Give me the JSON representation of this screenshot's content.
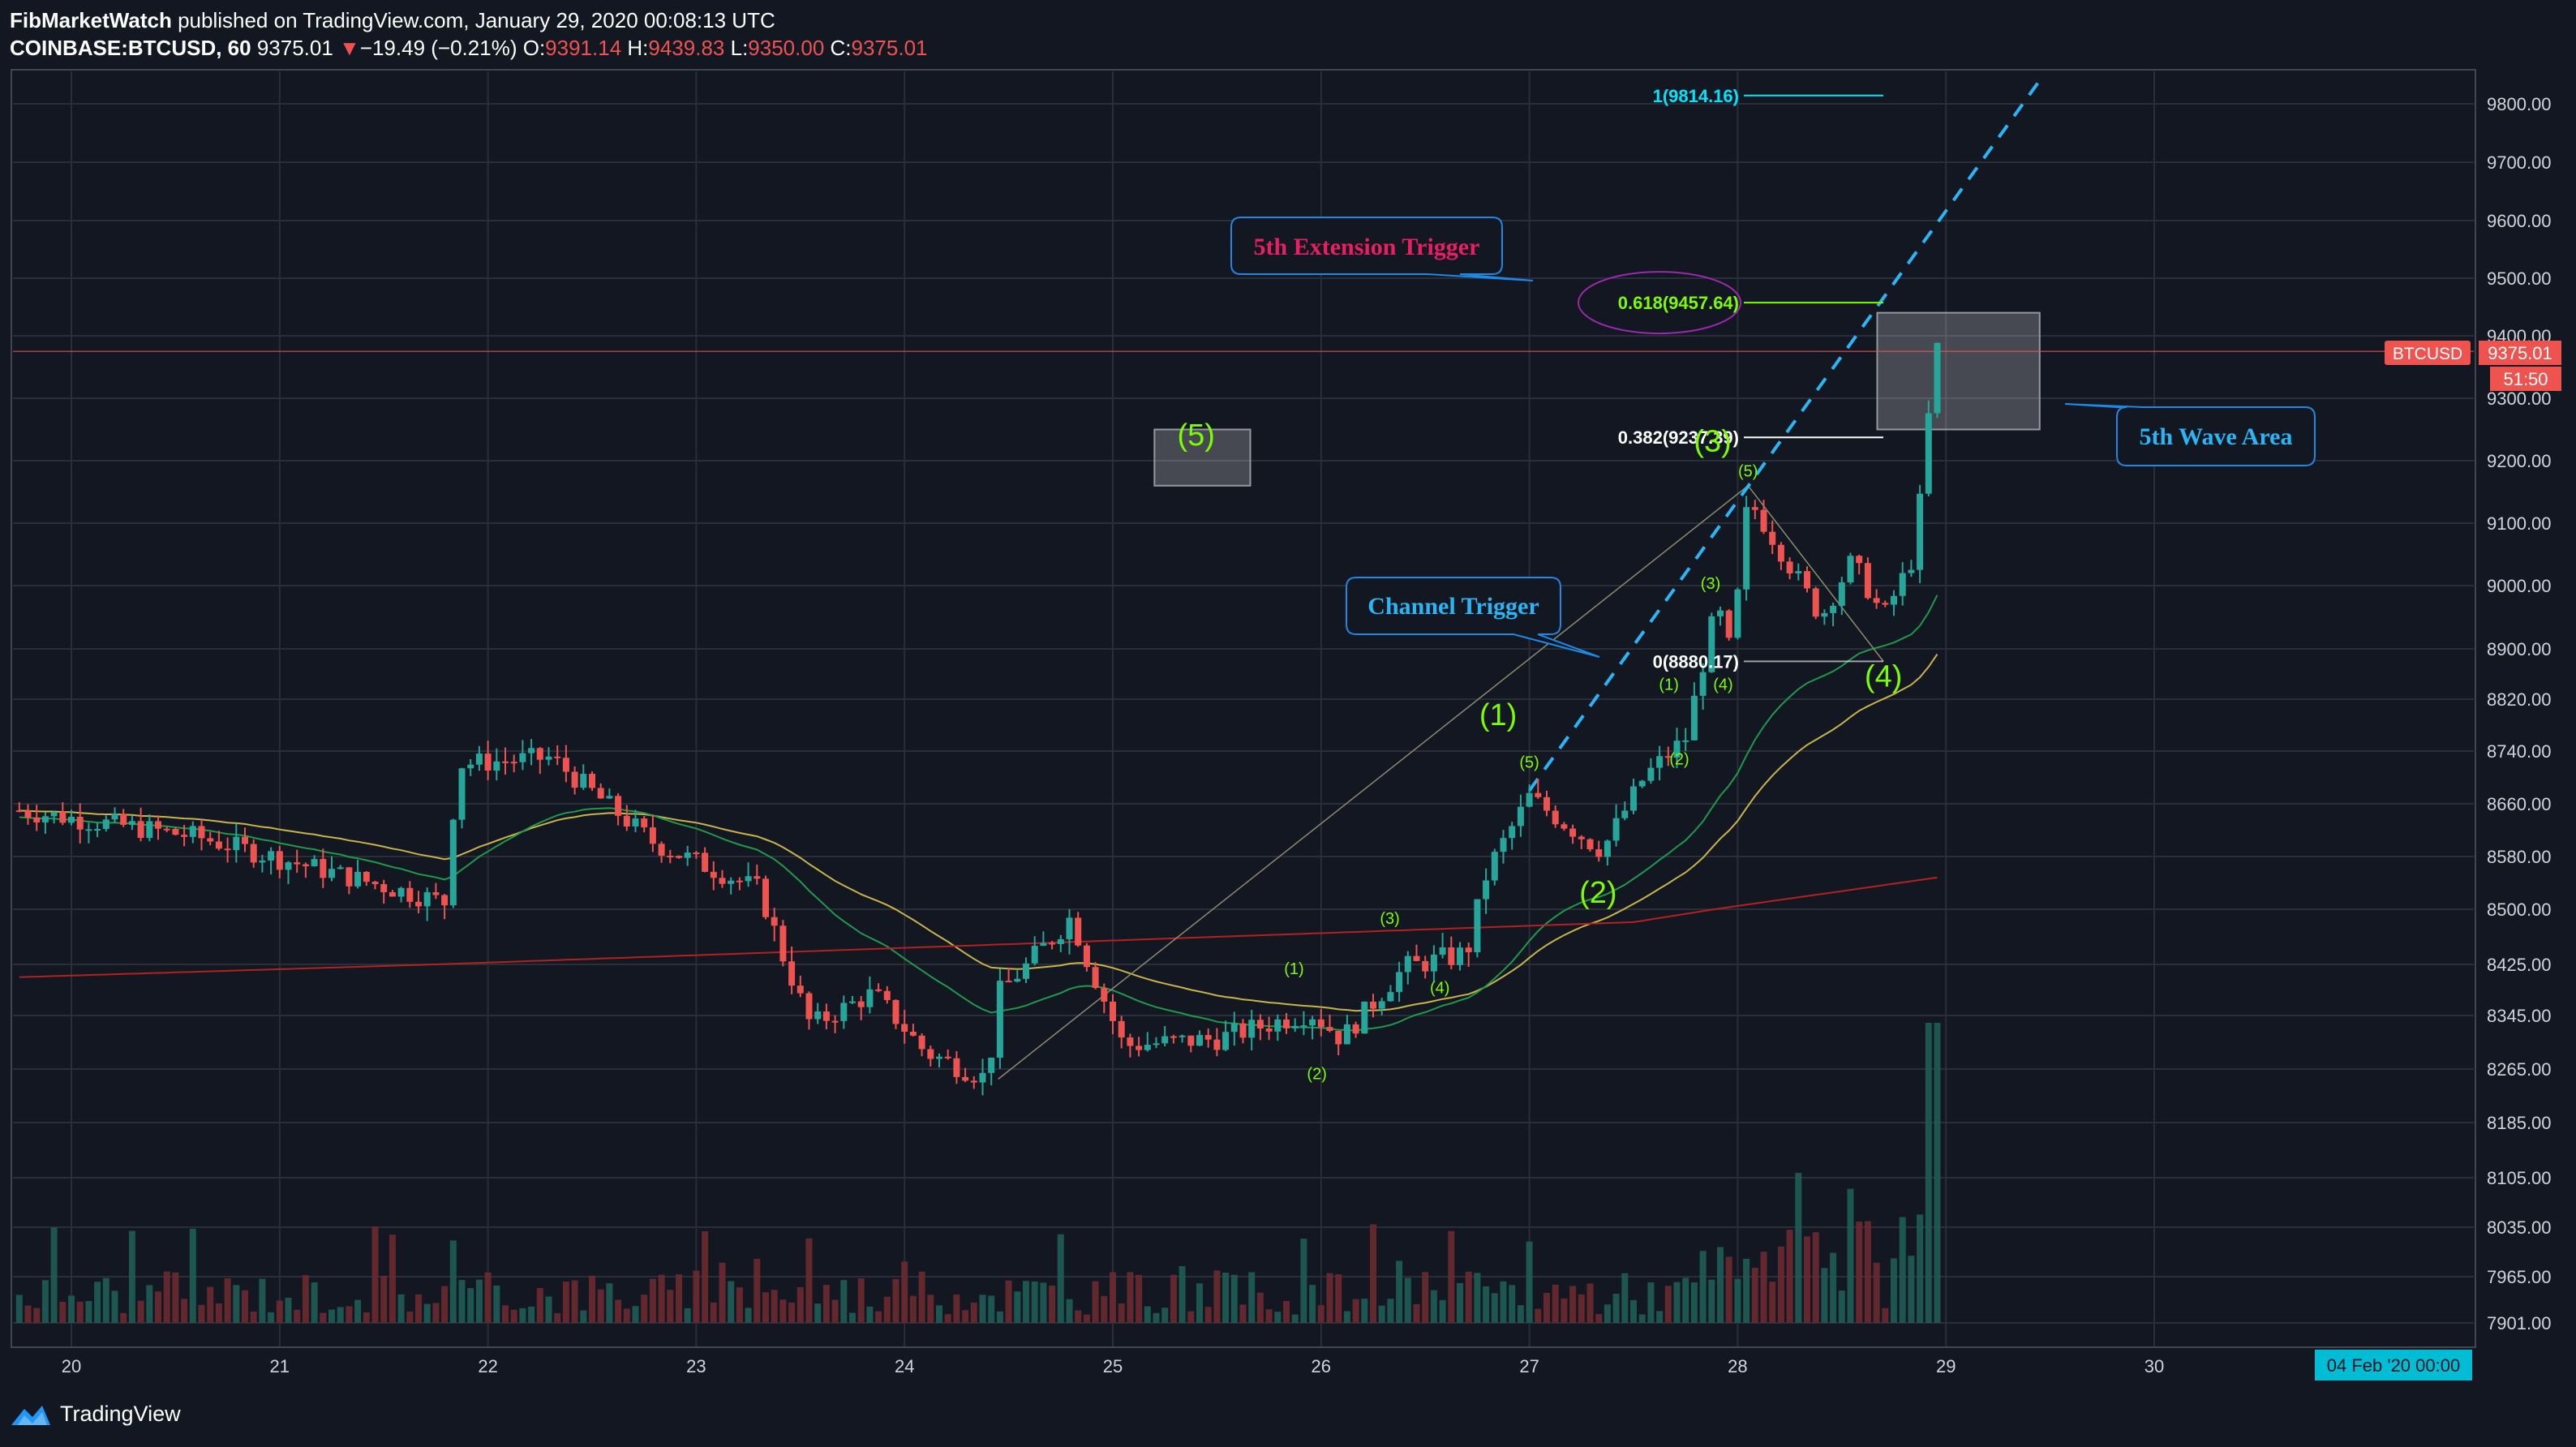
{
  "header": {
    "author": "FibMarketWatch",
    "published": "published on TradingView.com, January 29, 2020 00:08:13 UTC",
    "symbol": "COINBASE:BTCUSD, 60",
    "last": "9375.01",
    "change_arrow": "▼",
    "change": "−19.49 (−0.21%)",
    "o_label": "O:",
    "o": "9391.14",
    "h_label": "H:",
    "h": "9439.83",
    "l_label": "L:",
    "l": "9350.00",
    "c_label": "C:",
    "c": "9375.01"
  },
  "footer": {
    "brand": "TradingView",
    "logo_icon": "tradingview-logo-icon"
  },
  "colors": {
    "background": "#131722",
    "grid": "#2a2e39",
    "up": "#26a69a",
    "down": "#ef5350",
    "ema_fast": "#c8b44a",
    "ema_mid": "#1f9a4a",
    "sma_long": "#b22222",
    "wave_label": "#7cfc00",
    "callout_border": "#1e88e5",
    "channel": "#29b6f6"
  },
  "chart_data": {
    "type": "candlestick",
    "timeframe": "60",
    "x_ticks": [
      "20",
      "21",
      "22",
      "23",
      "24",
      "25",
      "26",
      "27",
      "28",
      "29",
      "30"
    ],
    "y_ticks": [
      "9800.00",
      "9700.00",
      "9600.00",
      "9500.00",
      "9400.00",
      "9300.00",
      "9200.00",
      "9100.00",
      "9000.00",
      "8900.00",
      "8820.00",
      "8740.00",
      "8660.00",
      "8580.00",
      "8500.00",
      "8425.00",
      "8345.00",
      "8265.00",
      "8185.00",
      "8105.00",
      "8035.00",
      "7965.00",
      "7901.00"
    ],
    "y_range": [
      7870,
      9850
    ],
    "last_price": {
      "label": "BTCUSD",
      "value": "9375.01",
      "countdown": "51:50"
    },
    "time_cursor": "04 Feb '20   00:00",
    "series": [
      {
        "name": "BTCUSD",
        "key_points": [
          {
            "day": 19.75,
            "price": 8650
          },
          {
            "day": 20.6,
            "price": 8610
          },
          {
            "day": 21.8,
            "price": 8510
          },
          {
            "day": 21.85,
            "price": 8720
          },
          {
            "day": 22.3,
            "price": 8730
          },
          {
            "day": 22.8,
            "price": 8600
          },
          {
            "day": 23.3,
            "price": 8530
          },
          {
            "day": 23.55,
            "price": 8330
          },
          {
            "day": 23.85,
            "price": 8380
          },
          {
            "day": 24.1,
            "price": 8290
          },
          {
            "day": 24.4,
            "price": 8250
          },
          {
            "day": 24.45,
            "price": 8380
          },
          {
            "day": 24.8,
            "price": 8490
          },
          {
            "day": 25.05,
            "price": 8300
          },
          {
            "day": 25.5,
            "price": 8310
          },
          {
            "day": 25.95,
            "price": 8350
          },
          {
            "day": 26.1,
            "price": 8310
          },
          {
            "day": 26.4,
            "price": 8420
          },
          {
            "day": 26.7,
            "price": 8440
          },
          {
            "day": 26.8,
            "price": 8560
          },
          {
            "day": 27.0,
            "price": 8670
          },
          {
            "day": 27.3,
            "price": 8600
          },
          {
            "day": 27.35,
            "price": 8590
          },
          {
            "day": 27.55,
            "price": 8700
          },
          {
            "day": 27.75,
            "price": 8760
          },
          {
            "day": 27.9,
            "price": 8970
          },
          {
            "day": 27.97,
            "price": 8890
          },
          {
            "day": 28.05,
            "price": 9140
          },
          {
            "day": 28.2,
            "price": 9060
          },
          {
            "day": 28.4,
            "price": 8950
          },
          {
            "day": 28.55,
            "price": 9040
          },
          {
            "day": 28.7,
            "price": 8950
          },
          {
            "day": 28.85,
            "price": 9050
          },
          {
            "day": 28.95,
            "price": 9380
          }
        ]
      },
      {
        "name": "EMA fast"
      },
      {
        "name": "EMA mid"
      },
      {
        "name": "SMA long"
      }
    ],
    "fib_levels": [
      {
        "label": "1(9814.16)",
        "price": 9814.16,
        "color": "#00e5ff"
      },
      {
        "label": "0.618(9457.64)",
        "price": 9457.64,
        "color": "#7cfc00"
      },
      {
        "label": "0.382(9237.39)",
        "price": 9237.39,
        "color": "#ffffff"
      },
      {
        "label": "0(8880.17)",
        "price": 8880.17,
        "color": "#ffffff"
      }
    ],
    "wave_labels": [
      {
        "text": "(5)",
        "day": 25.4,
        "price": 9225,
        "size": "big",
        "color": "#7cfc00"
      },
      {
        "text": "(1)",
        "day": 26.85,
        "price": 8780,
        "size": "big",
        "color": "#7cfc00"
      },
      {
        "text": "(2)",
        "day": 27.33,
        "price": 8510,
        "size": "big",
        "color": "#7cfc00"
      },
      {
        "text": "(3)",
        "day": 27.88,
        "price": 9215,
        "size": "big",
        "color": "#7cfc00"
      },
      {
        "text": "(4)",
        "day": 28.7,
        "price": 8840,
        "size": "big",
        "color": "#7cfc00"
      },
      {
        "text": "(1)",
        "day": 25.87,
        "price": 8410,
        "size": "small",
        "color": "#7cfc00"
      },
      {
        "text": "(2)",
        "day": 25.98,
        "price": 8250,
        "size": "small",
        "color": "#7cfc00"
      },
      {
        "text": "(3)",
        "day": 26.33,
        "price": 8480,
        "size": "small",
        "color": "#7cfc00"
      },
      {
        "text": "(4)",
        "day": 26.57,
        "price": 8380,
        "size": "small",
        "color": "#7cfc00"
      },
      {
        "text": "(5)",
        "day": 27.0,
        "price": 8715,
        "size": "small",
        "color": "#7cfc00"
      },
      {
        "text": "(1)",
        "day": 27.67,
        "price": 8835,
        "size": "small",
        "color": "#7cfc00"
      },
      {
        "text": "(2)",
        "day": 27.72,
        "price": 8720,
        "size": "small",
        "color": "#7cfc00"
      },
      {
        "text": "(3)",
        "day": 27.87,
        "price": 8995,
        "size": "small",
        "color": "#7cfc00"
      },
      {
        "text": "(4)",
        "day": 27.93,
        "price": 8835,
        "size": "small",
        "color": "#7cfc00"
      },
      {
        "text": "(5)",
        "day": 28.05,
        "price": 9175,
        "size": "small",
        "color": "#7cfc00"
      }
    ],
    "annotations": [
      {
        "text": "5th Extension Trigger",
        "color": "#e91e63"
      },
      {
        "text": "Channel Trigger",
        "color": "#29b6f6"
      },
      {
        "text": "5th Wave Area",
        "color": "#29b6f6"
      }
    ]
  }
}
